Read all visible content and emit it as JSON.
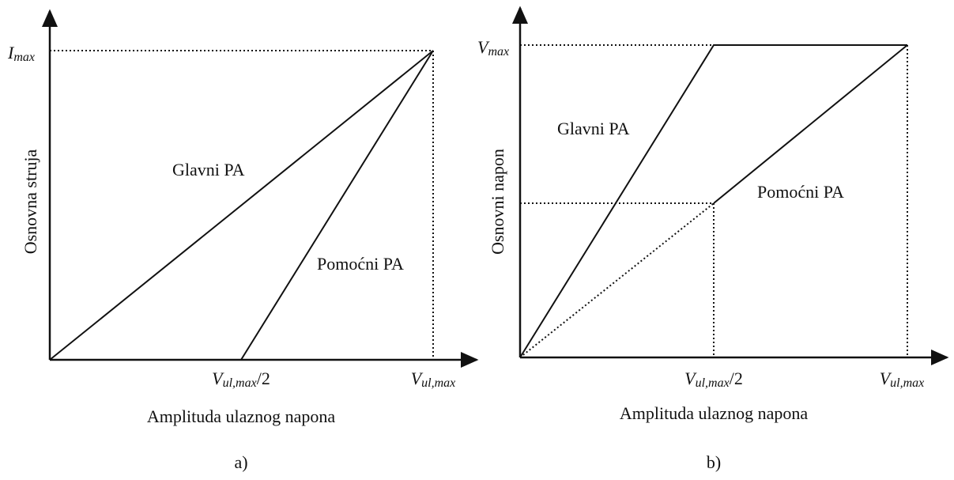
{
  "panels": [
    {
      "caption": "a)",
      "y_axis_label": "Osnovna struja",
      "x_axis_label": "Amplituda ulaznog napona",
      "y_tick": {
        "main": "I",
        "sub": "max"
      },
      "x_ticks": [
        {
          "main": "V",
          "sub": "ul,max",
          "suffix": "/2"
        },
        {
          "main": "V",
          "sub": "ul,max"
        }
      ],
      "curves": [
        "Glavni PA",
        "Pomoćni PA"
      ]
    },
    {
      "caption": "b)",
      "y_axis_label": "Osnovni napon",
      "x_axis_label": "Amplituda ulaznog napona",
      "y_tick": {
        "main": "V",
        "sub": "max"
      },
      "x_ticks": [
        {
          "main": "V",
          "sub": "ul,max",
          "suffix": "/2"
        },
        {
          "main": "V",
          "sub": "ul,max"
        }
      ],
      "curves": [
        "Glavni PA",
        "Pomoćni PA"
      ]
    }
  ]
}
